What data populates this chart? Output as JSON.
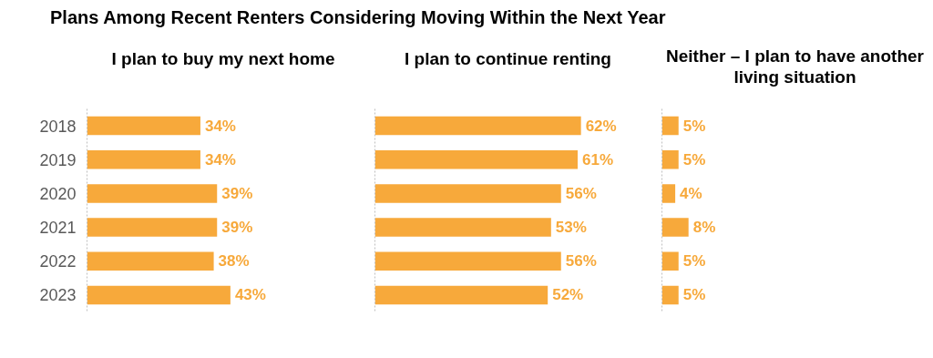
{
  "chart_data": [
    {
      "type": "bar",
      "orientation": "horizontal",
      "title": "Plans Among Recent Renters Considering Moving Within the Next Year",
      "subtitle": "I plan to buy my next home",
      "categories": [
        "2018",
        "2019",
        "2020",
        "2021",
        "2022",
        "2023"
      ],
      "values": [
        34,
        34,
        39,
        39,
        38,
        43
      ],
      "value_labels": [
        "34%",
        "34%",
        "39%",
        "39%",
        "38%",
        "43%"
      ],
      "color": "#f7a93b",
      "tick_labels": "y"
    },
    {
      "type": "bar",
      "orientation": "horizontal",
      "subtitle": "I plan to continue renting",
      "categories": [
        "2018",
        "2019",
        "2020",
        "2021",
        "2022",
        "2023"
      ],
      "values": [
        62,
        61,
        56,
        53,
        56,
        52
      ],
      "value_labels": [
        "62%",
        "61%",
        "56%",
        "53%",
        "56%",
        "52%"
      ],
      "color": "#f7a93b",
      "tick_labels": false
    },
    {
      "type": "bar",
      "orientation": "horizontal",
      "subtitle": "Neither – I plan to have another living situation",
      "categories": [
        "2018",
        "2019",
        "2020",
        "2021",
        "2022",
        "2023"
      ],
      "values": [
        5,
        5,
        4,
        8,
        5,
        5
      ],
      "value_labels": [
        "5%",
        "5%",
        "4%",
        "8%",
        "5%",
        "5%"
      ],
      "color": "#f7a93b",
      "tick_labels": false
    }
  ]
}
